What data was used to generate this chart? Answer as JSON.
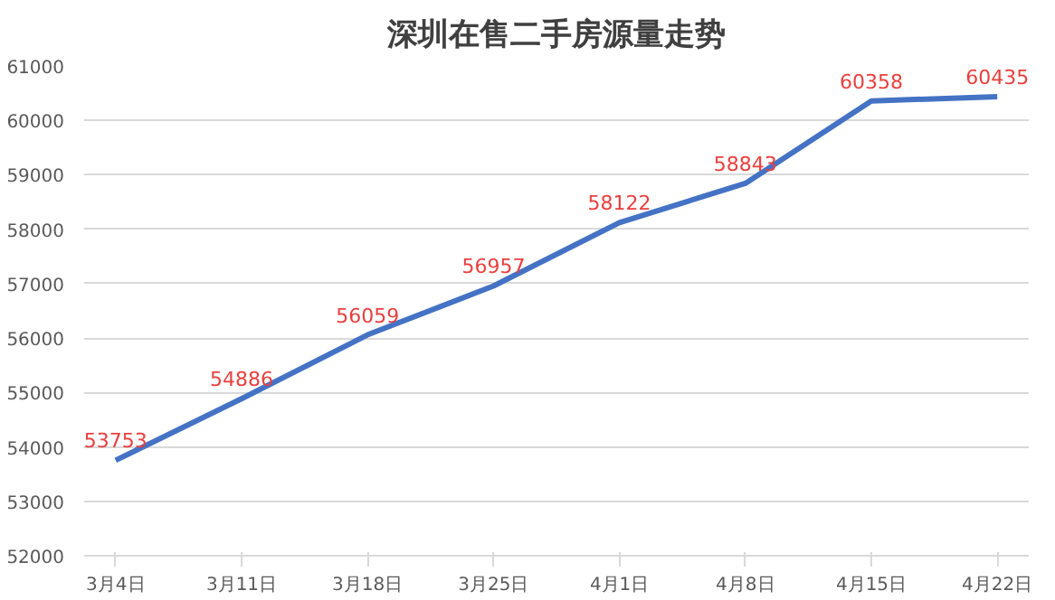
{
  "chart_data": {
    "type": "line",
    "title": "深圳在售二手房源量走势",
    "categories": [
      "3月4日",
      "3月11日",
      "3月18日",
      "3月25日",
      "4月1日",
      "4月8日",
      "4月15日",
      "4月22日"
    ],
    "series": [
      {
        "color": "#4472c4",
        "values": [
          53753,
          54886,
          56059,
          56957,
          58122,
          58843,
          60358,
          60435
        ]
      }
    ],
    "ylim": [
      52000,
      61000
    ],
    "yticks": [
      52000,
      53000,
      54000,
      55000,
      56000,
      57000,
      58000,
      59000,
      60000,
      61000
    ],
    "grid": "y",
    "data_labels": true,
    "marker": "none"
  }
}
